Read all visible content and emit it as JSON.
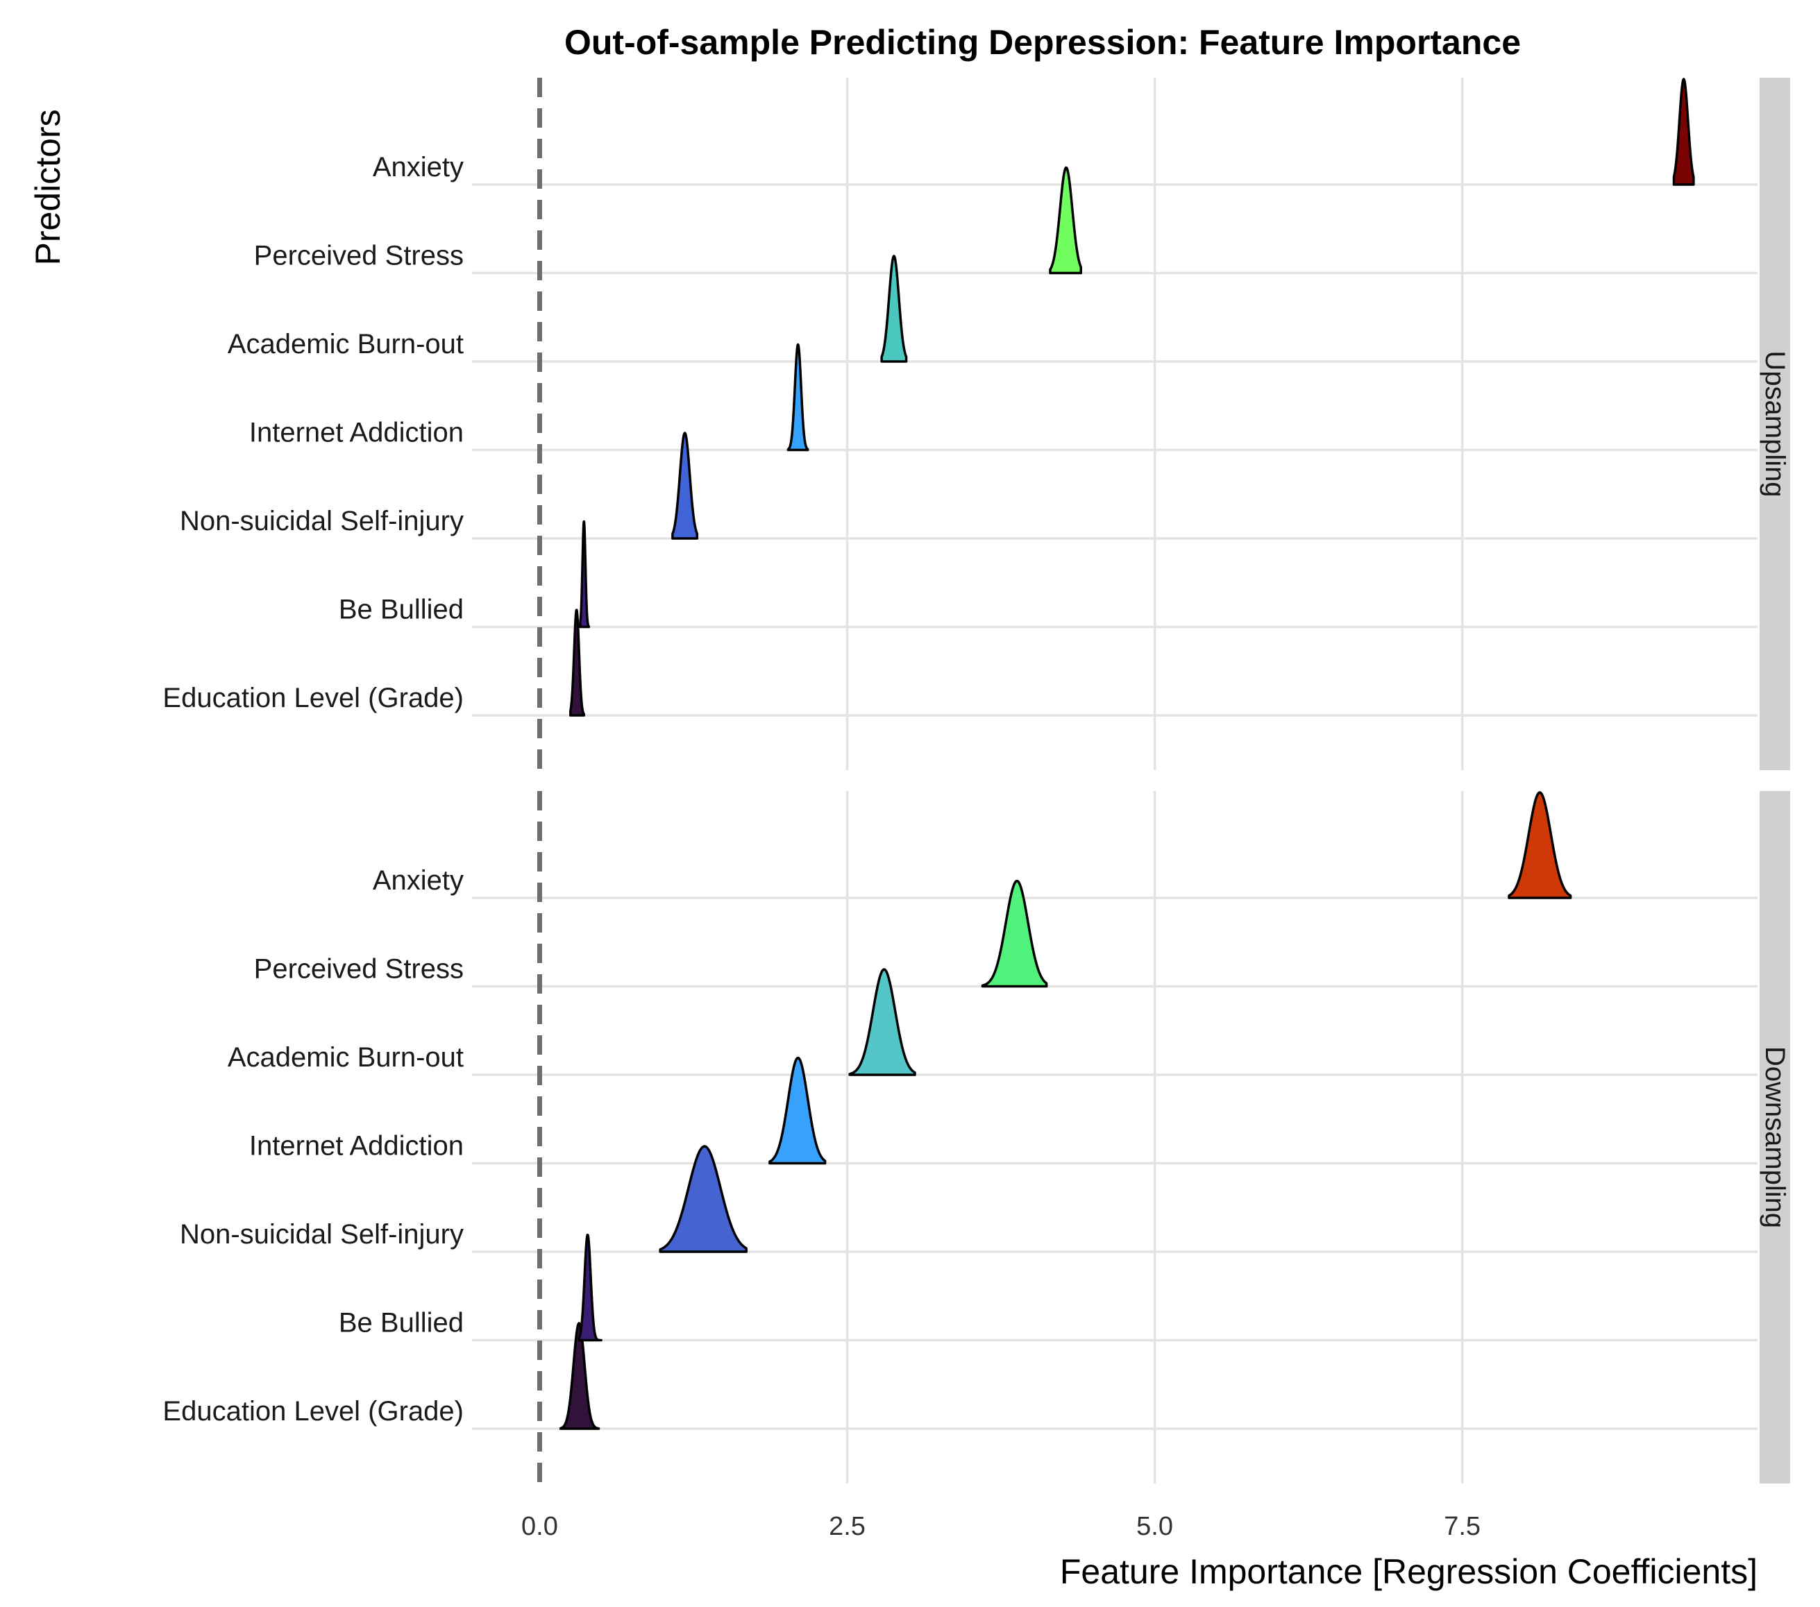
{
  "chart_data": {
    "type": "ridgeline",
    "title": "Out-of-sample Predicting Depression: Feature Importance",
    "xlabel": "Feature Importance [Regression Coefficients]",
    "ylabel": "Predictors",
    "xlim": [
      -0.55,
      9.9
    ],
    "x_ticks": [
      {
        "value": 0,
        "label": "0.0"
      },
      {
        "value": 2.5,
        "label": "2.5"
      },
      {
        "value": 5,
        "label": "5.0"
      },
      {
        "value": 7.5,
        "label": "7.5"
      }
    ],
    "reference_line": {
      "x": 0,
      "style": "dashed"
    },
    "grid": true,
    "legend": "none",
    "categories": [
      "Anxiety",
      "Perceived Stress",
      "Academic Burn-out",
      "Internet Addiction",
      "Non-suicidal Self-injury",
      "Be Bullied",
      "Education Level (Grade)"
    ],
    "panels": [
      {
        "name": "Upsampling",
        "series": [
          {
            "category": "Anxiety",
            "center": 9.3,
            "spread": 0.035,
            "min": 9.22,
            "max": 9.38,
            "color": "#7a0403"
          },
          {
            "category": "Perceived Stress",
            "center": 4.28,
            "spread": 0.05,
            "min": 4.15,
            "max": 4.4,
            "color": "#71fe5f"
          },
          {
            "category": "Academic Burn-out",
            "center": 2.88,
            "spread": 0.04,
            "min": 2.78,
            "max": 2.98,
            "color": "#4ac8c0"
          },
          {
            "category": "Internet Addiction",
            "center": 2.1,
            "spread": 0.025,
            "min": 2.02,
            "max": 2.18,
            "color": "#35a2fe"
          },
          {
            "category": "Non-suicidal Self-injury",
            "center": 1.18,
            "spread": 0.04,
            "min": 1.08,
            "max": 1.28,
            "color": "#4264d9"
          },
          {
            "category": "Be Bullied",
            "center": 0.36,
            "spread": 0.012,
            "min": 0.33,
            "max": 0.4,
            "color": "#3f1f7e"
          },
          {
            "category": "Education Level (Grade)",
            "center": 0.3,
            "spread": 0.02,
            "min": 0.25,
            "max": 0.36,
            "color": "#30123b"
          }
        ]
      },
      {
        "name": "Downsampling",
        "series": [
          {
            "category": "Anxiety",
            "center": 8.13,
            "spread": 0.09,
            "min": 7.88,
            "max": 8.38,
            "color": "#cf3807"
          },
          {
            "category": "Perceived Stress",
            "center": 3.88,
            "spread": 0.09,
            "min": 3.6,
            "max": 4.12,
            "color": "#50f27b"
          },
          {
            "category": "Academic Burn-out",
            "center": 2.8,
            "spread": 0.09,
            "min": 2.52,
            "max": 3.05,
            "color": "#55c6c7"
          },
          {
            "category": "Internet Addiction",
            "center": 2.1,
            "spread": 0.08,
            "min": 1.87,
            "max": 2.32,
            "color": "#36a2fe"
          },
          {
            "category": "Non-suicidal Self-injury",
            "center": 1.34,
            "spread": 0.13,
            "min": 0.98,
            "max": 1.68,
            "color": "#4564d2"
          },
          {
            "category": "Be Bullied",
            "center": 0.39,
            "spread": 0.025,
            "min": 0.32,
            "max": 0.5,
            "color": "#3b1d74"
          },
          {
            "category": "Education Level (Grade)",
            "center": 0.32,
            "spread": 0.045,
            "min": 0.17,
            "max": 0.48,
            "color": "#30123b"
          }
        ]
      }
    ]
  }
}
